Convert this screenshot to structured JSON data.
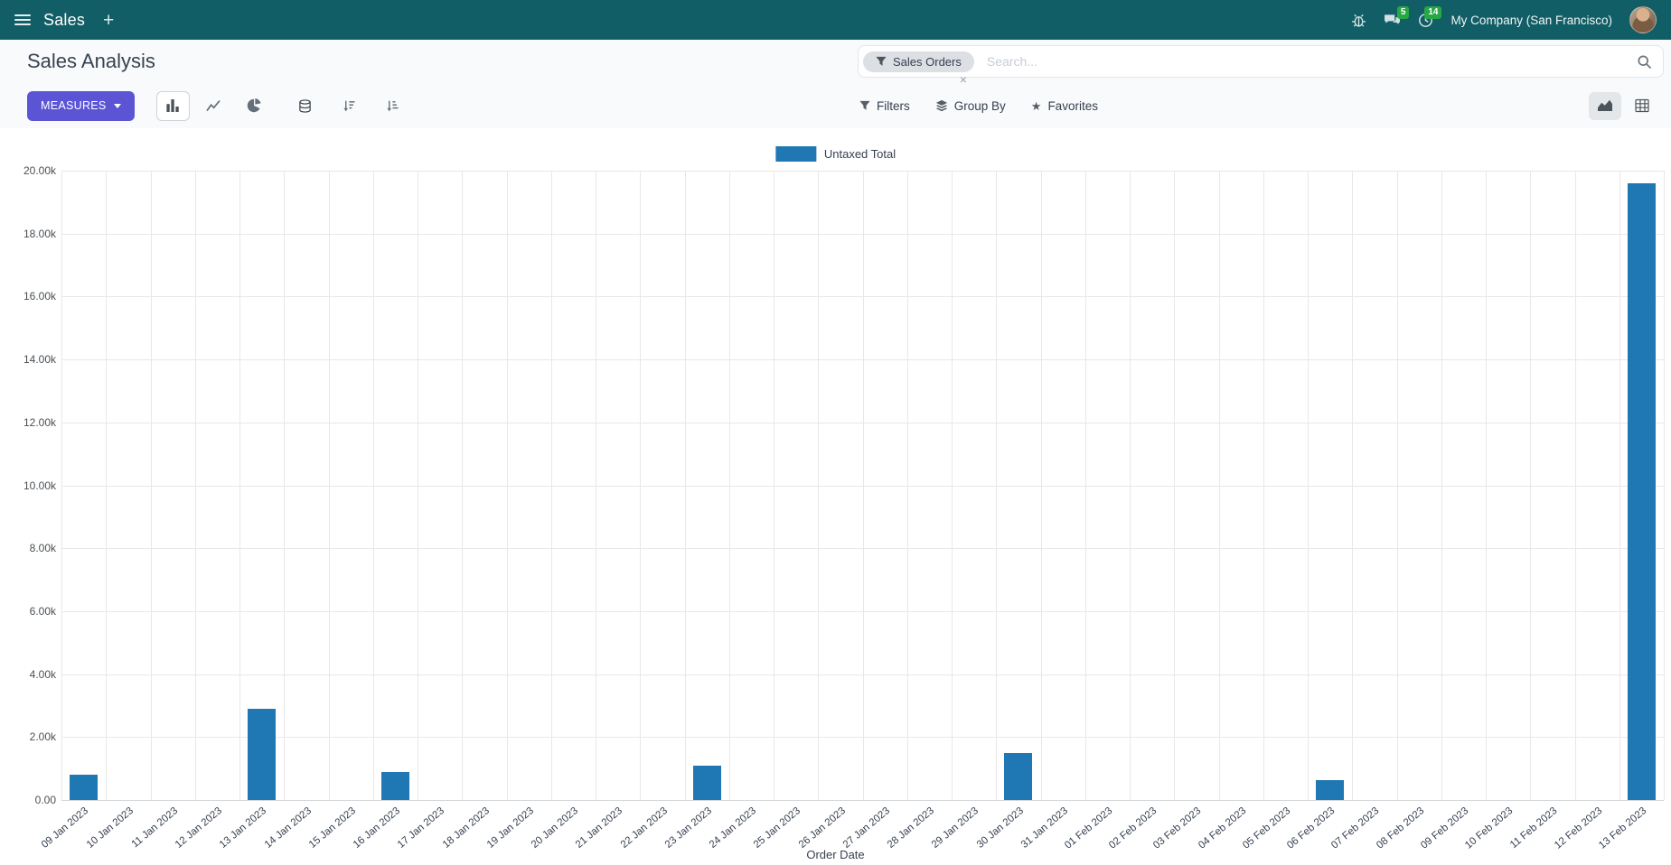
{
  "colors": {
    "topbar_bg": "#115e66",
    "primary": "#5b55d6",
    "bar": "#1f77b4",
    "badge_green": "#28a745"
  },
  "topbar": {
    "app_name": "Sales",
    "plus_label": "+",
    "messages_badge": "5",
    "activities_badge": "14",
    "company": "My Company (San Francisco)"
  },
  "control_panel": {
    "breadcrumb": "Sales Analysis",
    "measures_label": "MEASURES",
    "filters_label": "Filters",
    "group_by_label": "Group By",
    "favorites_label": "Favorites"
  },
  "search": {
    "facet_label": "Sales Orders",
    "facet_remove": "×",
    "placeholder": "Search..."
  },
  "chart_data": {
    "type": "bar",
    "title": "",
    "legend": [
      "Untaxed Total"
    ],
    "legend_position": "top",
    "grid": true,
    "xlabel": "Order Date",
    "ylabel": "",
    "ylim": [
      0,
      20000
    ],
    "y_tick_labels": [
      "0.00",
      "2.00k",
      "4.00k",
      "6.00k",
      "8.00k",
      "10.00k",
      "12.00k",
      "14.00k",
      "16.00k",
      "18.00k",
      "20.00k"
    ],
    "categories": [
      "09 Jan 2023",
      "10 Jan 2023",
      "11 Jan 2023",
      "12 Jan 2023",
      "13 Jan 2023",
      "14 Jan 2023",
      "15 Jan 2023",
      "16 Jan 2023",
      "17 Jan 2023",
      "18 Jan 2023",
      "19 Jan 2023",
      "20 Jan 2023",
      "21 Jan 2023",
      "22 Jan 2023",
      "23 Jan 2023",
      "24 Jan 2023",
      "25 Jan 2023",
      "26 Jan 2023",
      "27 Jan 2023",
      "28 Jan 2023",
      "29 Jan 2023",
      "30 Jan 2023",
      "31 Jan 2023",
      "01 Feb 2023",
      "02 Feb 2023",
      "03 Feb 2023",
      "04 Feb 2023",
      "05 Feb 2023",
      "06 Feb 2023",
      "07 Feb 2023",
      "08 Feb 2023",
      "09 Feb 2023",
      "10 Feb 2023",
      "11 Feb 2023",
      "12 Feb 2023",
      "13 Feb 2023"
    ],
    "series": [
      {
        "name": "Untaxed Total",
        "values": [
          800,
          0,
          0,
          0,
          2900,
          0,
          0,
          900,
          0,
          0,
          0,
          0,
          0,
          0,
          1080,
          0,
          0,
          0,
          0,
          0,
          0,
          1500,
          0,
          0,
          0,
          0,
          0,
          0,
          640,
          0,
          0,
          0,
          0,
          0,
          0,
          19600
        ]
      }
    ]
  }
}
